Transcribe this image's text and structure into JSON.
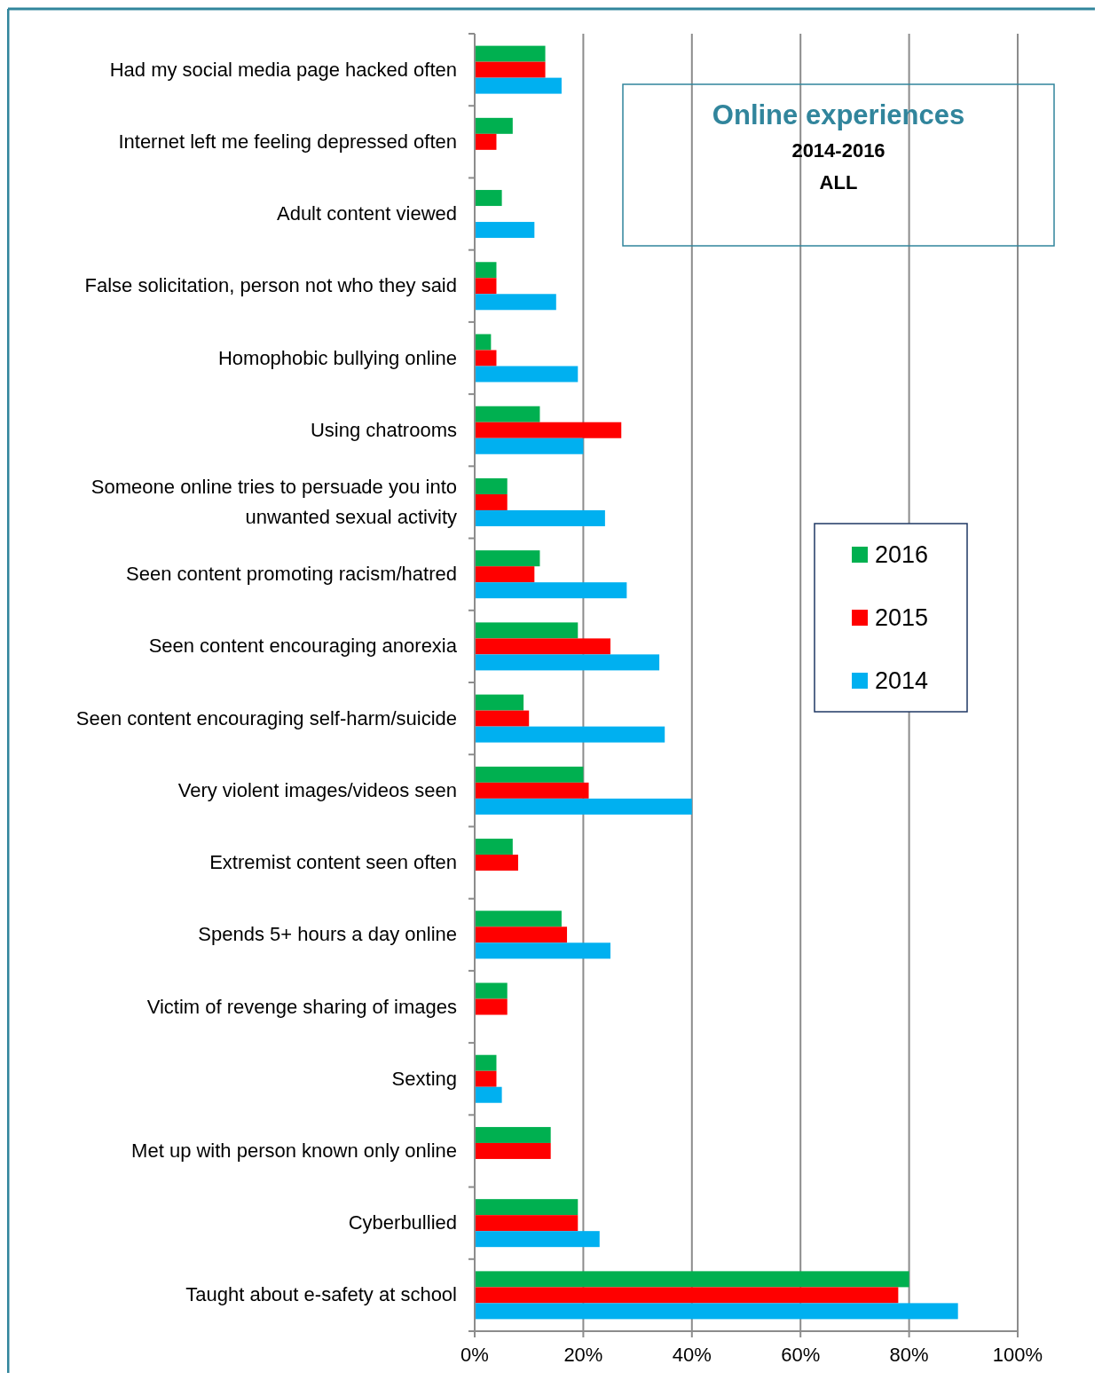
{
  "chart_data": {
    "type": "bar",
    "orientation": "horizontal",
    "title": "Online experiences",
    "subtitle": "2014-2016",
    "annotations": [
      "ALL"
    ],
    "categories": [
      "Had my social media page hacked often",
      "Internet left me feeling depressed often",
      "Adult content viewed",
      "False solicitation, person not who they said",
      "Homophobic bullying online",
      "Using chatrooms",
      "Someone online tries to persuade you into unwanted sexual activity",
      "Seen content promoting racism/hatred",
      "Seen content encouraging anorexia",
      "Seen content encouraging self-harm/suicide",
      "Very violent images/videos seen",
      "Extremist content seen often",
      "Spends 5+ hours a day online",
      "Victim of revenge sharing of images",
      "Sexting",
      "Met up with person known only online",
      "Cyberbullied",
      "Taught about e-safety at school"
    ],
    "series": [
      {
        "name": "2016",
        "color": "#00b050",
        "values": [
          13,
          7,
          5,
          4,
          3,
          12,
          6,
          12,
          19,
          9,
          20,
          7,
          16,
          6,
          4,
          14,
          19,
          80
        ]
      },
      {
        "name": "2015",
        "color": "#ff0000",
        "values": [
          13,
          4,
          null,
          4,
          4,
          27,
          6,
          11,
          25,
          10,
          21,
          8,
          17,
          6,
          4,
          14,
          19,
          78
        ]
      },
      {
        "name": "2014",
        "color": "#00b0f0",
        "values": [
          16,
          null,
          11,
          15,
          19,
          20,
          24,
          28,
          34,
          35,
          40,
          null,
          25,
          null,
          5,
          null,
          23,
          89
        ]
      }
    ],
    "xlim": [
      0,
      100
    ],
    "xticks": [
      {
        "value": 0,
        "label": "0%"
      },
      {
        "value": 20,
        "label": "20%"
      },
      {
        "value": 40,
        "label": "40%"
      },
      {
        "value": 60,
        "label": "60%"
      },
      {
        "value": 80,
        "label": "80%"
      },
      {
        "value": 100,
        "label": "100%"
      }
    ],
    "grid": "x",
    "legend": "right"
  }
}
